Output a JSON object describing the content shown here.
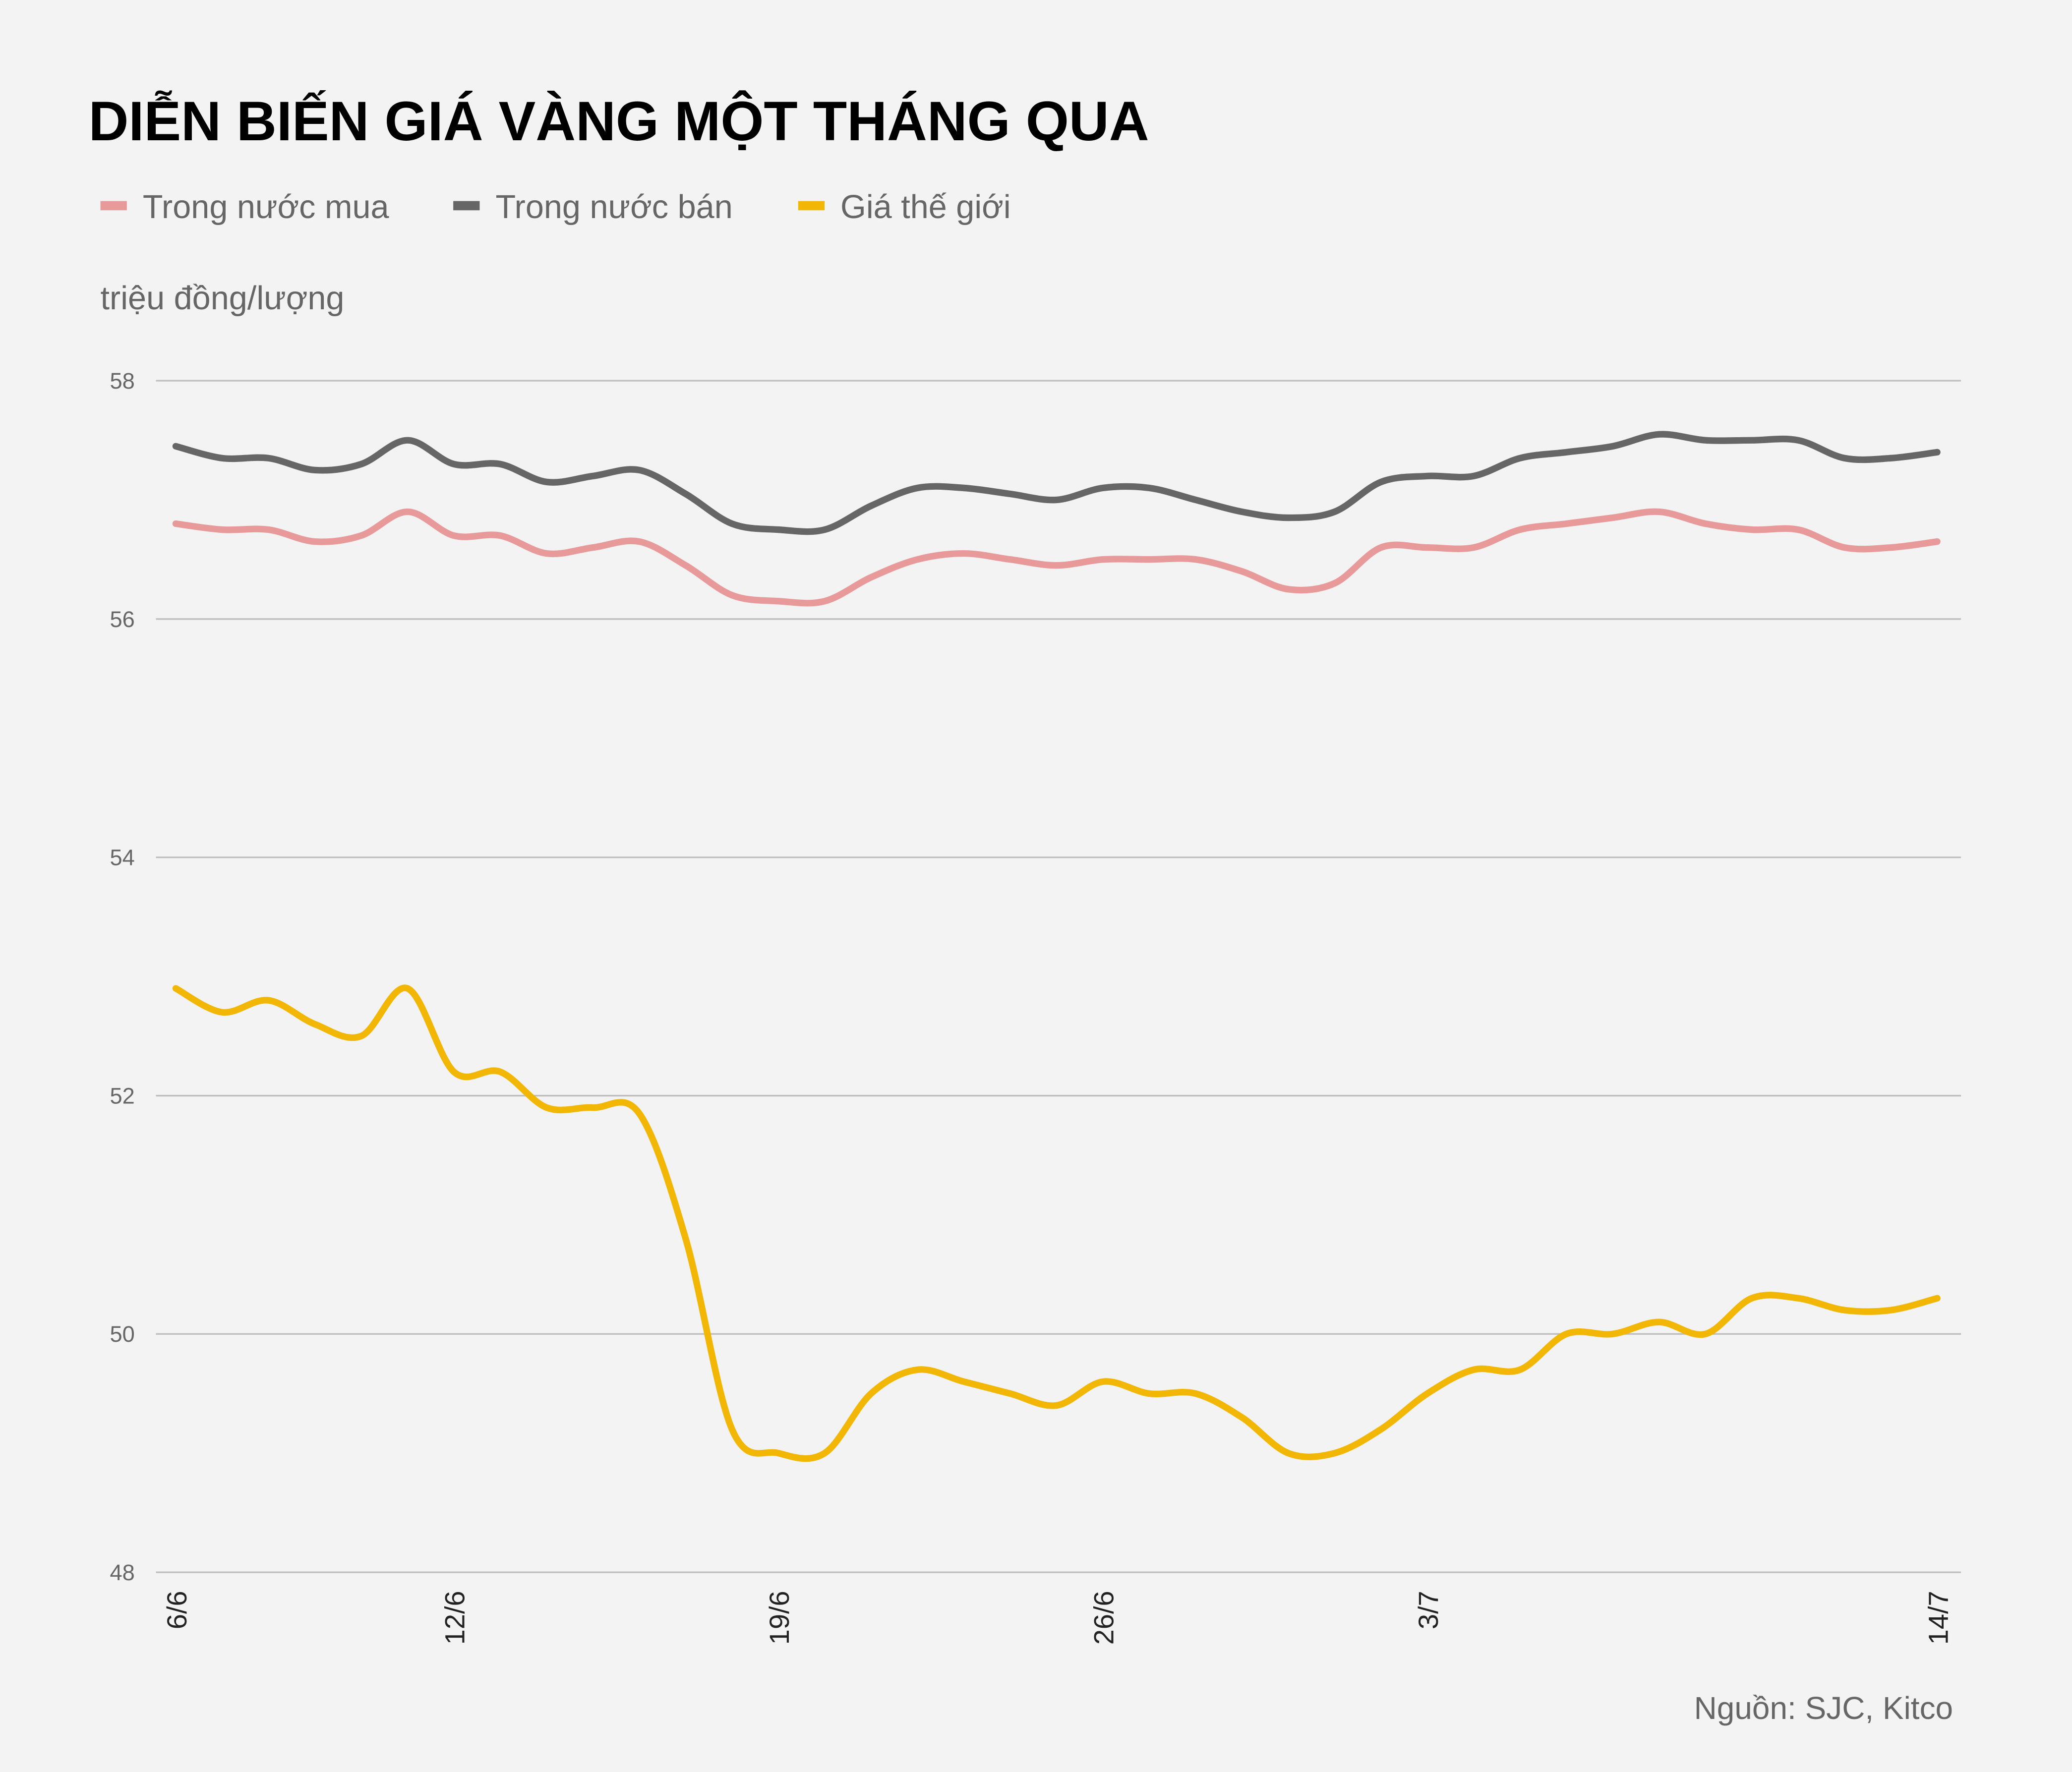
{
  "chart_data": {
    "type": "line",
    "title": "DIỄN BIẾN GIÁ VÀNG MỘT THÁNG QUA",
    "ylabel": "triệu đồng/lượng",
    "source": "Nguồn: SJC, Kitco",
    "ylim": [
      48,
      58
    ],
    "yticks": [
      "48",
      "50",
      "52",
      "54",
      "56",
      "58"
    ],
    "grid": true,
    "legend_position": "top-left",
    "x": [
      "6/6",
      "7/6",
      "8/6",
      "9/6",
      "10/6",
      "11/6",
      "12/6",
      "13/6",
      "14/6",
      "15/6",
      "16/6",
      "17/6",
      "18/6",
      "19/6",
      "20/6",
      "21/6",
      "22/6",
      "23/6",
      "24/6",
      "25/6",
      "26/6",
      "27/6",
      "28/6",
      "29/6",
      "30/6",
      "1/7",
      "2/7",
      "3/7",
      "4/7",
      "5/7",
      "6/7",
      "7/7",
      "8/7",
      "9/7",
      "10/7",
      "11/7",
      "12/7",
      "13/7",
      "14/7"
    ],
    "xticks": [
      "6/6",
      "12/6",
      "19/6",
      "26/6",
      "3/7",
      "14/7"
    ],
    "series": [
      {
        "name": "Trong nước mua",
        "color": "#e89a9a",
        "values": [
          56.8,
          56.75,
          56.75,
          56.65,
          56.7,
          56.9,
          56.7,
          56.7,
          56.55,
          56.6,
          56.65,
          56.45,
          56.2,
          56.15,
          56.15,
          56.35,
          56.5,
          56.55,
          56.5,
          56.45,
          56.5,
          56.5,
          56.5,
          56.4,
          56.25,
          56.3,
          56.6,
          56.6,
          56.6,
          56.75,
          56.8,
          56.85,
          56.9,
          56.8,
          56.75,
          56.75,
          56.6,
          56.6,
          56.65
        ]
      },
      {
        "name": "Trong nước bán",
        "color": "#666666",
        "values": [
          57.45,
          57.35,
          57.35,
          57.25,
          57.3,
          57.5,
          57.3,
          57.3,
          57.15,
          57.2,
          57.25,
          57.05,
          56.8,
          56.75,
          56.75,
          56.95,
          57.1,
          57.1,
          57.05,
          57.0,
          57.1,
          57.1,
          57.0,
          56.9,
          56.85,
          56.9,
          57.15,
          57.2,
          57.2,
          57.35,
          57.4,
          57.45,
          57.55,
          57.5,
          57.5,
          57.5,
          57.35,
          57.35,
          57.4
        ]
      },
      {
        "name": "Giá thế giới",
        "color": "#f2b705",
        "values": [
          52.9,
          52.7,
          52.8,
          52.6,
          52.5,
          52.9,
          52.2,
          52.2,
          51.9,
          51.9,
          51.85,
          50.8,
          49.2,
          49.0,
          49.0,
          49.5,
          49.7,
          49.6,
          49.5,
          49.4,
          49.6,
          49.5,
          49.5,
          49.3,
          49.0,
          49.0,
          49.2,
          49.5,
          49.7,
          49.7,
          50.0,
          50.0,
          50.1,
          50.0,
          50.3,
          50.3,
          50.2,
          50.2,
          50.3
        ]
      }
    ]
  }
}
